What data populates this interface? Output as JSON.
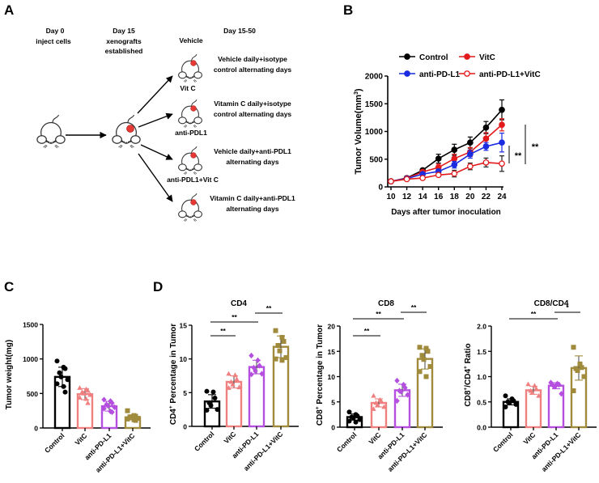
{
  "panel_labels": {
    "a": "A",
    "b": "B",
    "c": "C",
    "d": "D"
  },
  "schematic": {
    "timeline": [
      {
        "title": "Day 0",
        "subtitle": [
          "inject  cells"
        ]
      },
      {
        "title": "Day 15",
        "subtitle": [
          "xenografts",
          "established"
        ]
      },
      {
        "title": "Day 15-50",
        "subtitle": []
      }
    ],
    "groups": [
      {
        "name": "Vehicle",
        "treatment": [
          "Vehicle daily+isotype",
          "control alternating days"
        ]
      },
      {
        "name": "Vit C",
        "treatment": [
          "Vitamin C daily+isotype",
          "control alternating days"
        ]
      },
      {
        "name": "anti-PDL1",
        "treatment": [
          "Vehicle daily+anti-PDL1",
          "alternating days"
        ]
      },
      {
        "name": "anti-PDL1+Vit C",
        "treatment": [
          "Vitamin C daily+anti-PDL1",
          "alternating days"
        ]
      }
    ],
    "icons": [
      "mouse-icon",
      "tumor-mouse-icon",
      "arrow-icon"
    ],
    "tumor_color": "#e53935"
  },
  "chart_data": [
    {
      "panel": "B",
      "type": "line",
      "xlabel": "Days after tumor inoculation",
      "ylabel": "Tumor Volume(mm3)",
      "ylabel_main": "Tumor Volume(mm",
      "ylabel_sup": "3",
      "ylabel_end": ")",
      "xlim": [
        10,
        24
      ],
      "ylim": [
        0,
        2000
      ],
      "x": [
        10,
        12,
        14,
        16,
        18,
        20,
        22,
        24
      ],
      "xticks": [
        "10",
        "12",
        "14",
        "16",
        "18",
        "20",
        "22",
        "24"
      ],
      "yticks": [
        "0",
        "500",
        "1000",
        "1500",
        "2000"
      ],
      "legend_placement": "top",
      "series": [
        {
          "name": "Control",
          "color": "#000000",
          "marker": "filled-circle",
          "values": [
            100,
            160,
            300,
            510,
            670,
            800,
            1070,
            1390
          ],
          "error": [
            20,
            30,
            30,
            80,
            100,
            100,
            110,
            180
          ]
        },
        {
          "name": "VitC",
          "color": "#e31a1c",
          "marker": "filled-circle",
          "values": [
            100,
            155,
            270,
            350,
            510,
            630,
            870,
            1120
          ],
          "error": [
            20,
            25,
            30,
            60,
            80,
            80,
            110,
            110
          ]
        },
        {
          "name": "anti-PD-L1",
          "color": "#1a2be0",
          "marker": "filled-circle",
          "values": [
            100,
            150,
            230,
            280,
            400,
            590,
            730,
            800
          ],
          "error": [
            20,
            25,
            30,
            40,
            60,
            70,
            70,
            170
          ]
        },
        {
          "name": "anti-PD-L1+VitC",
          "color": "#e31a1c",
          "marker": "open-circle",
          "values": [
            100,
            140,
            160,
            215,
            240,
            370,
            440,
            420
          ],
          "error": [
            20,
            20,
            25,
            30,
            60,
            60,
            80,
            140
          ]
        }
      ],
      "significance": [
        "**",
        "**"
      ]
    },
    {
      "panel": "C",
      "type": "bar",
      "title": "",
      "ylabel": "Tumor weight(mg)",
      "ylim": [
        0,
        1500
      ],
      "yticks": [
        "0",
        "500",
        "1000",
        "1500"
      ],
      "categories": [
        "Control",
        "VitC",
        "anti-PD-L1",
        "anti-PD-L1+VitC"
      ],
      "colors": [
        "#000000",
        "#f08080",
        "#b44fe0",
        "#a08a3c"
      ],
      "markers": [
        "circle",
        "triangle",
        "diamond",
        "square"
      ],
      "values": [
        740,
        490,
        315,
        155
      ],
      "sd": [
        140,
        80,
        70,
        35
      ],
      "points": [
        [
          970,
          880,
          860,
          800,
          740,
          700,
          640,
          600,
          520
        ],
        [
          580,
          560,
          540,
          520,
          500,
          480,
          440,
          420,
          360
        ],
        [
          410,
          390,
          360,
          340,
          320,
          300,
          280,
          240,
          230
        ],
        [
          250,
          180,
          170,
          160,
          150,
          140,
          130,
          120,
          110
        ]
      ],
      "significance": []
    },
    {
      "panel": "D",
      "type": "bar",
      "title": "CD4",
      "ylabel_main": "CD4",
      "ylabel_sup": "+",
      "ylabel_end": " Percentage in Tumor",
      "ylim": [
        0,
        15
      ],
      "yticks": [
        "0",
        "5",
        "10",
        "15"
      ],
      "categories": [
        "Control",
        "VitC",
        "anti-PD-L1",
        "anti-PD-L1+VitC"
      ],
      "colors": [
        "#000000",
        "#f08080",
        "#b44fe0",
        "#a08a3c"
      ],
      "markers": [
        "circle",
        "triangle",
        "diamond",
        "square"
      ],
      "values": [
        3.7,
        6.6,
        8.8,
        11.8
      ],
      "sd": [
        1.0,
        0.9,
        1.0,
        1.6
      ],
      "points": [
        [
          5.2,
          5.1,
          4.2,
          3.5,
          3.1,
          2.5,
          2.4
        ],
        [
          7.8,
          7.6,
          7.0,
          6.6,
          6.2,
          5.8,
          5.7
        ],
        [
          10.5,
          9.8,
          9.0,
          8.7,
          8.2,
          7.8,
          7.7
        ],
        [
          14.2,
          13.2,
          12.6,
          12.0,
          11.2,
          10.2,
          10.0,
          9.8
        ]
      ],
      "significance": [
        {
          "from": 0,
          "to": 1,
          "label": "**"
        },
        {
          "from": 0,
          "to": 2,
          "label": "**"
        },
        {
          "from": 2,
          "to": 3,
          "label": "**"
        }
      ]
    },
    {
      "panel": "D",
      "type": "bar",
      "title": "CD8",
      "ylabel_main": "CD8",
      "ylabel_sup": "+",
      "ylabel_end": " Percentage in Tumor",
      "ylim": [
        0,
        20
      ],
      "yticks": [
        "0",
        "5",
        "10",
        "15",
        "20"
      ],
      "categories": [
        "Control",
        "VitC",
        "anti-PD-L1",
        "anti-PD-L1+VitC"
      ],
      "colors": [
        "#000000",
        "#f08080",
        "#b44fe0",
        "#a08a3c"
      ],
      "markers": [
        "circle",
        "triangle",
        "diamond",
        "square"
      ],
      "values": [
        2.0,
        4.8,
        7.3,
        13.5
      ],
      "sd": [
        0.6,
        0.8,
        1.2,
        2.0
      ],
      "points": [
        [
          3.0,
          2.5,
          2.2,
          2.0,
          1.8,
          1.5,
          1.2,
          1.0
        ],
        [
          6.2,
          5.4,
          5.0,
          4.8,
          4.4,
          4.0,
          3.6
        ],
        [
          9.2,
          8.4,
          7.8,
          7.2,
          7.0,
          6.4,
          5.2
        ],
        [
          15.8,
          15.6,
          15.0,
          14.2,
          13.4,
          12.0,
          11.0,
          10.0
        ]
      ],
      "significance": [
        {
          "from": 0,
          "to": 1,
          "label": "**"
        },
        {
          "from": 0,
          "to": 2,
          "label": "**"
        },
        {
          "from": 2,
          "to": 3,
          "label": "**"
        }
      ]
    },
    {
      "panel": "D",
      "type": "bar",
      "title": "CD8/CD4",
      "ylabel_main": "CD8",
      "ylabel_sup": "+",
      "ylabel_mid": "/CD4",
      "ylabel_sup2": "+",
      "ylabel_end": " Ratio",
      "ylim": [
        0,
        2.0
      ],
      "yticks": [
        "0.0",
        "0.5",
        "1.0",
        "1.5",
        "2.0"
      ],
      "categories": [
        "Control",
        "VitC",
        "anti-PD-L1",
        "anti-PD-L1+VitC"
      ],
      "colors": [
        "#000000",
        "#f08080",
        "#b44fe0",
        "#a08a3c"
      ],
      "markers": [
        "circle",
        "triangle",
        "diamond",
        "square"
      ],
      "values": [
        0.5,
        0.73,
        0.82,
        1.17
      ],
      "sd": [
        0.06,
        0.08,
        0.06,
        0.24
      ],
      "points": [
        [
          0.62,
          0.56,
          0.52,
          0.5,
          0.48,
          0.45,
          0.4
        ],
        [
          0.85,
          0.82,
          0.76,
          0.72,
          0.68,
          0.62
        ],
        [
          0.88,
          0.86,
          0.84,
          0.82,
          0.8,
          0.66
        ],
        [
          1.58,
          1.25,
          1.18,
          1.16,
          1.12,
          1.0,
          0.72
        ]
      ],
      "significance": [
        {
          "from": 0,
          "to": 2,
          "label": "**"
        },
        {
          "from": 2,
          "to": 3,
          "label": "*"
        }
      ]
    }
  ]
}
